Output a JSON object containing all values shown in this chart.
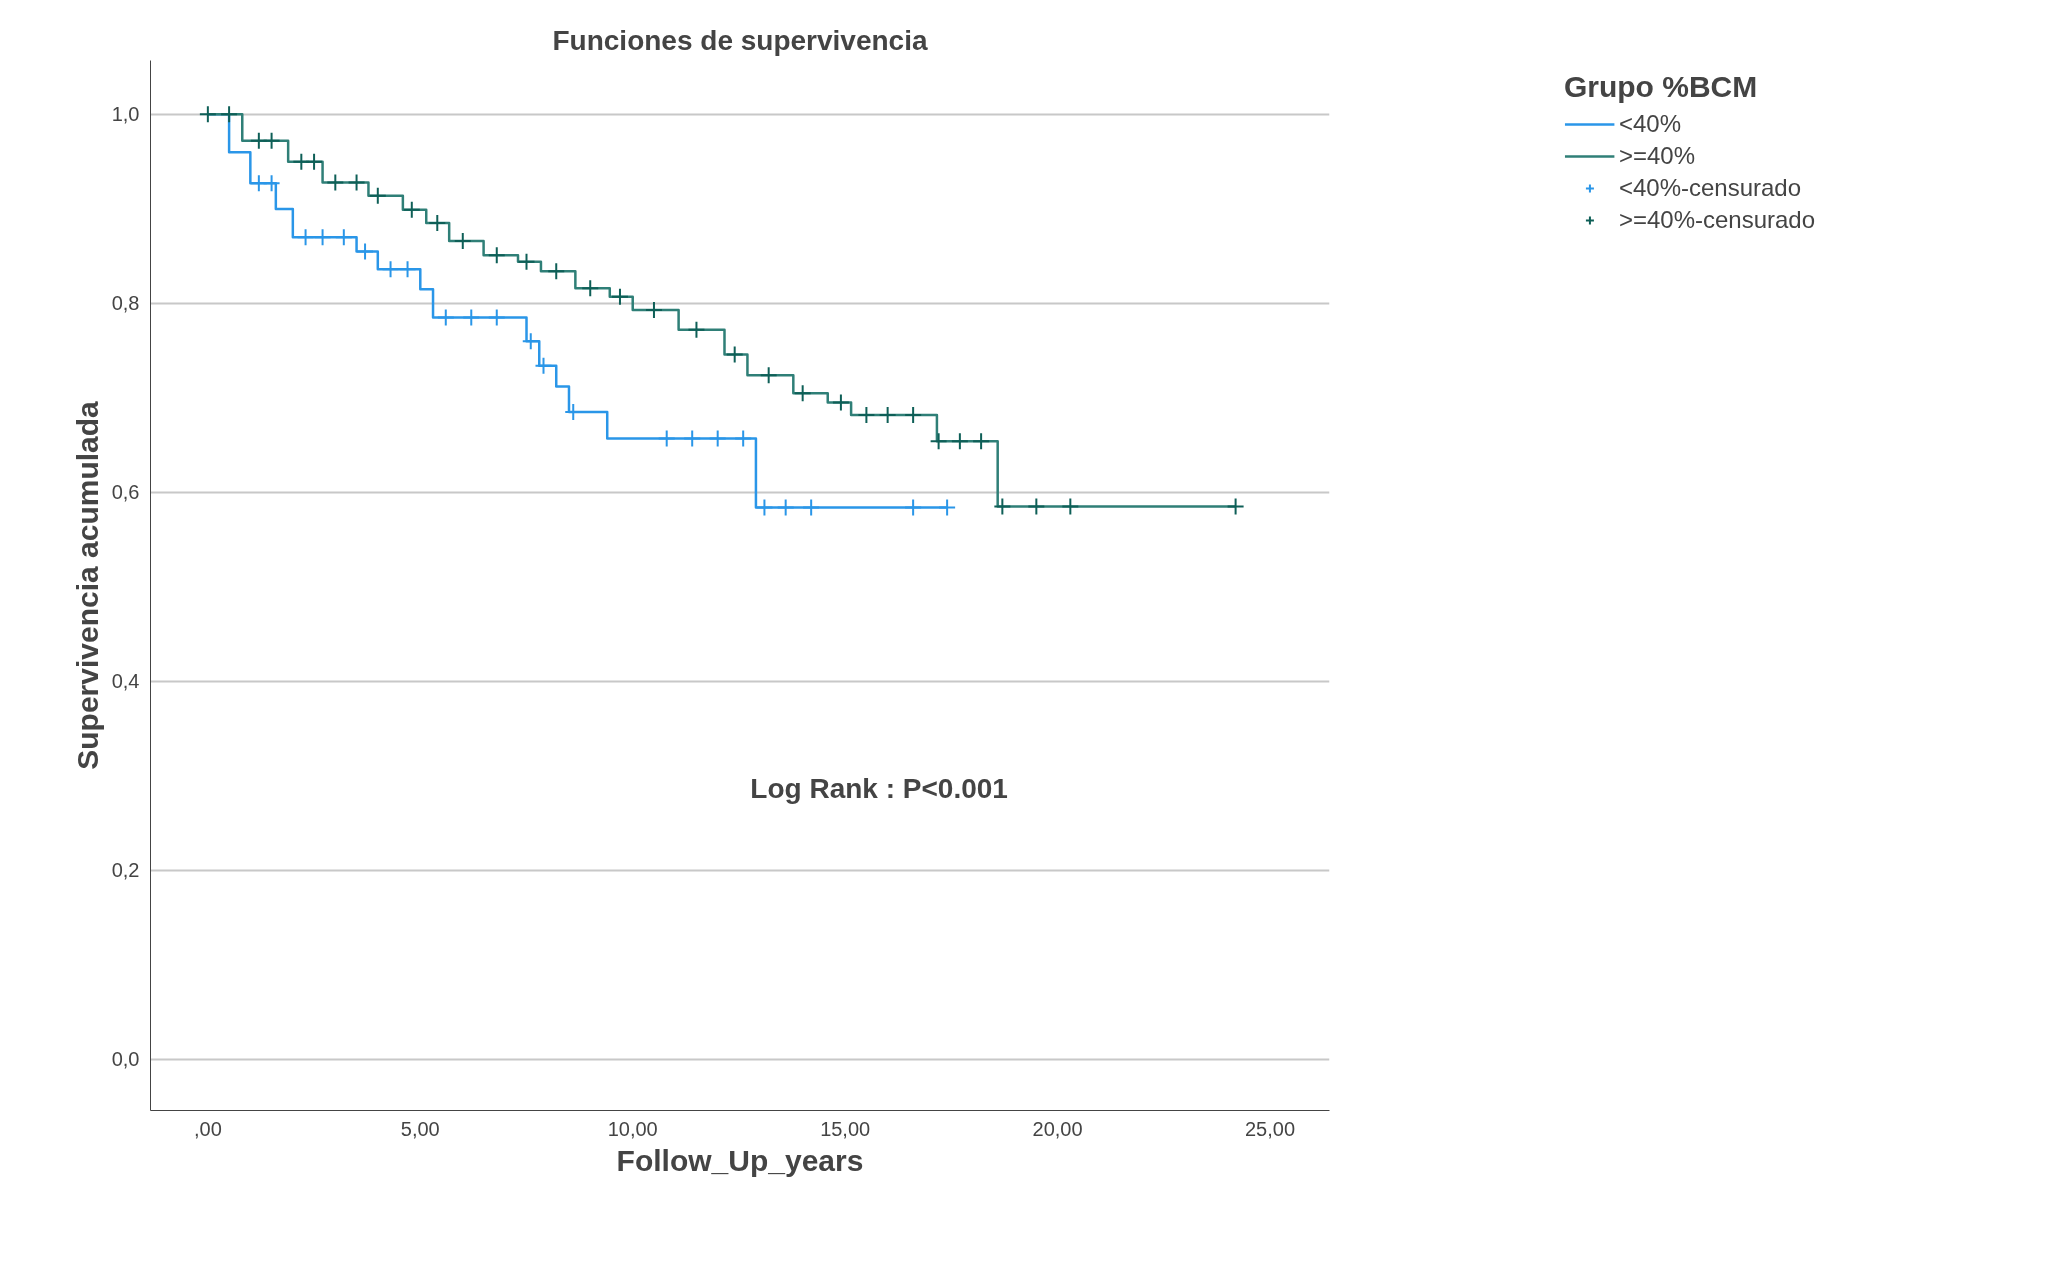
{
  "chart_data": {
    "type": "step",
    "title": "Funciones de supervivencia",
    "xlabel": "Follow_Up_years",
    "ylabel": "Supervivencia acumulada",
    "legend_title": "Grupo %BCM",
    "xlim": [
      -1.35,
      26.4
    ],
    "ylim": [
      -0.054,
      1.057
    ],
    "xticks": [
      {
        "value": 0,
        "label": ",00"
      },
      {
        "value": 5,
        "label": "5,00"
      },
      {
        "value": 10,
        "label": "10,00"
      },
      {
        "value": 15,
        "label": "15,00"
      },
      {
        "value": 20,
        "label": "20,00"
      },
      {
        "value": 25,
        "label": "25,00"
      }
    ],
    "yticks": [
      {
        "value": 0,
        "label": "0,0"
      },
      {
        "value": 0.2,
        "label": "0,2"
      },
      {
        "value": 0.4,
        "label": "0,4"
      },
      {
        "value": 0.6,
        "label": "0,6"
      },
      {
        "value": 0.8,
        "label": "0,8"
      },
      {
        "value": 1.0,
        "label": "1,0"
      }
    ],
    "grid": "y",
    "legend": "top right",
    "line_style": "solid",
    "annotations": [
      "Log Rank : P<0.001"
    ],
    "series": [
      {
        "name": "<40%",
        "color": "#2a96e8",
        "x": [
          0,
          0.5,
          1.0,
          1.6,
          2.0,
          3.5,
          4.0,
          5.0,
          5.3,
          7.5,
          7.8,
          8.2,
          8.5,
          9.4,
          12.9,
          17.4
        ],
        "values": [
          1.0,
          0.96,
          0.927,
          0.9,
          0.87,
          0.855,
          0.836,
          0.815,
          0.785,
          0.76,
          0.734,
          0.712,
          0.685,
          0.657,
          0.584,
          0.584
        ]
      },
      {
        "name": ">=40%",
        "color": "#2f7f77",
        "x": [
          0,
          0.81,
          1.89,
          2.7,
          3.78,
          4.59,
          5.14,
          5.68,
          6.49,
          7.3,
          7.84,
          8.65,
          9.46,
          10.0,
          11.08,
          12.16,
          12.7,
          13.78,
          14.59,
          15.14,
          17.16,
          18.59,
          24.19
        ],
        "values": [
          1.0,
          0.972,
          0.95,
          0.928,
          0.914,
          0.899,
          0.885,
          0.866,
          0.851,
          0.844,
          0.834,
          0.816,
          0.807,
          0.793,
          0.772,
          0.746,
          0.724,
          0.705,
          0.695,
          0.682,
          0.654,
          0.585,
          0.585
        ]
      },
      {
        "name": "<40%-censurado",
        "type": "scatter",
        "marker": "cross",
        "color": "#2a96e8",
        "x": [
          1.2,
          1.5,
          2.3,
          2.7,
          3.2,
          3.7,
          4.3,
          4.7,
          5.6,
          6.2,
          6.8,
          7.6,
          7.9,
          8.6,
          10.8,
          11.4,
          12.0,
          12.6,
          13.1,
          13.6,
          14.2,
          16.6,
          17.4
        ],
        "values": [
          0.927,
          0.927,
          0.87,
          0.87,
          0.87,
          0.855,
          0.836,
          0.836,
          0.785,
          0.785,
          0.785,
          0.76,
          0.734,
          0.685,
          0.657,
          0.657,
          0.657,
          0.657,
          0.584,
          0.584,
          0.584,
          0.584,
          0.584
        ]
      },
      {
        "name": ">=40%-censurado",
        "type": "scatter",
        "marker": "cross",
        "color": "#0e5f57",
        "x": [
          0,
          0.5,
          1.2,
          1.5,
          2.2,
          2.5,
          3.0,
          3.5,
          4.0,
          4.8,
          5.4,
          6.0,
          6.8,
          7.5,
          8.2,
          9.0,
          9.7,
          10.5,
          11.5,
          12.4,
          13.2,
          14.0,
          14.9,
          15.5,
          16.0,
          16.6,
          17.2,
          17.7,
          18.2,
          18.7,
          19.5,
          20.3,
          24.19
        ],
        "values": [
          1.0,
          1.0,
          0.972,
          0.972,
          0.95,
          0.95,
          0.928,
          0.928,
          0.914,
          0.899,
          0.885,
          0.866,
          0.851,
          0.844,
          0.834,
          0.816,
          0.807,
          0.793,
          0.772,
          0.746,
          0.724,
          0.705,
          0.695,
          0.682,
          0.682,
          0.682,
          0.654,
          0.654,
          0.654,
          0.585,
          0.585,
          0.585,
          0.585
        ]
      }
    ]
  }
}
